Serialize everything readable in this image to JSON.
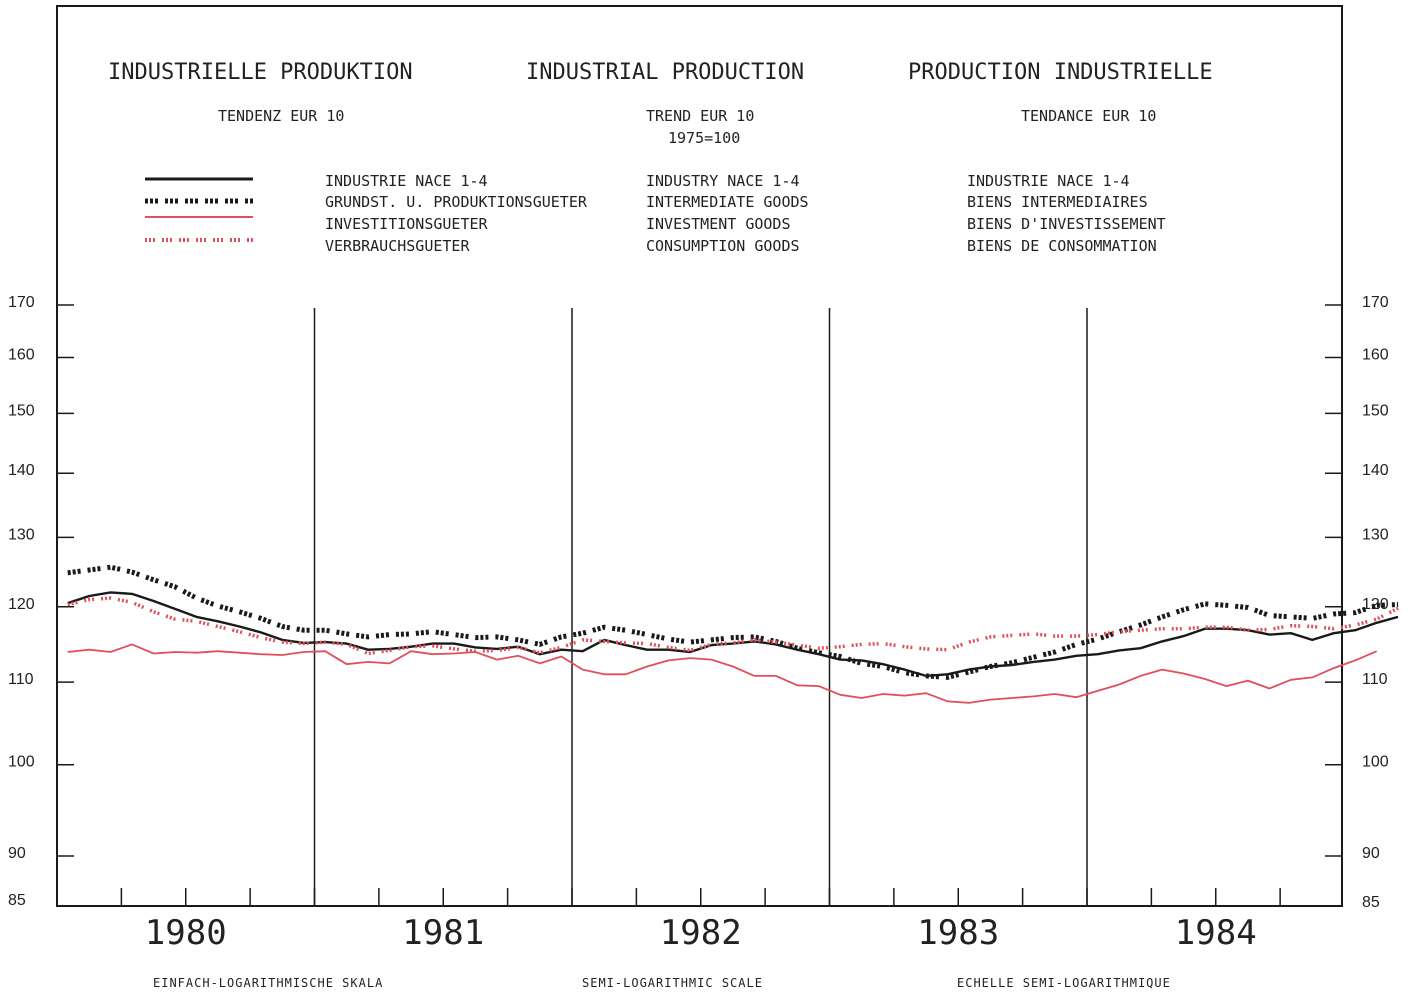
{
  "titles": {
    "de": "INDUSTRIELLE PRODUKTION",
    "en": "INDUSTRIAL PRODUCTION",
    "fr": "PRODUCTION INDUSTRIELLE"
  },
  "subtitles": {
    "de": "TENDENZ  EUR 10",
    "en": "TREND EUR 10",
    "en_base": "1975=100",
    "fr": "TENDANCE EUR 10"
  },
  "legend": [
    {
      "de": "INDUSTRIE NACE 1-4",
      "en": "INDUSTRY NACE 1-4",
      "fr": "INDUSTRIE NACE 1-4",
      "color": "#1a1a1a",
      "style": "solid"
    },
    {
      "de": "GRUNDST. U. PRODUKTIONSGUETER",
      "en": "INTERMEDIATE GOODS",
      "fr": "BIENS INTERMEDIAIRES",
      "color": "#1a1a1a",
      "style": "dotted-thick"
    },
    {
      "de": "INVESTITIONSGUETER",
      "en": "INVESTMENT GOODS",
      "fr": "BIENS D'INVESTISSEMENT",
      "color": "#e0505a",
      "style": "solid"
    },
    {
      "de": "VERBRAUCHSGUETER",
      "en": "CONSUMPTION GOODS",
      "fr": "BIENS DE CONSOMMATION",
      "color": "#e0505a",
      "style": "dotted"
    }
  ],
  "footer": {
    "de": "EINFACH-LOGARITHMISCHE SKALA",
    "en": "SEMI-LOGARITHMIC SCALE",
    "fr": "ECHELLE SEMI-LOGARITHMIQUE"
  },
  "chart_data": {
    "type": "line",
    "title": "INDUSTRIAL PRODUCTION",
    "scale": "log",
    "ylim": [
      85,
      170
    ],
    "yticks": [
      170,
      160,
      150,
      140,
      130,
      120,
      110,
      100,
      90,
      85
    ],
    "ytick_labels": [
      "170",
      "160",
      "150",
      "140",
      "130",
      "120",
      "110",
      "100",
      "90",
      "85"
    ],
    "years": [
      "1980",
      "1981",
      "1982",
      "1983",
      "1984"
    ],
    "x_unit": "month",
    "x_start": "1980-01",
    "series": [
      {
        "name": "INDUSTRY NACE 1-4",
        "color": "#1a1a1a",
        "style": "solid",
        "values": [
          120.5,
          121.5,
          122.0,
          121.8,
          120.8,
          119.7,
          118.6,
          118.0,
          117.3,
          116.5,
          115.5,
          115.1,
          115.2,
          115.0,
          114.2,
          114.3,
          114.6,
          115.0,
          115.0,
          114.5,
          114.3,
          114.6,
          113.6,
          114.2,
          114.0,
          115.5,
          114.8,
          114.2,
          114.2,
          113.9,
          114.8,
          115.0,
          115.3,
          114.9,
          114.2,
          113.6,
          112.9,
          112.8,
          112.3,
          111.6,
          110.8,
          111.0,
          111.6,
          112.0,
          112.2,
          112.6,
          112.9,
          113.4,
          113.6,
          114.1,
          114.4,
          115.3,
          116.0,
          117.0,
          117.0,
          116.8,
          116.2,
          116.4,
          115.5,
          116.4,
          116.8,
          117.8,
          118.6
        ]
      },
      {
        "name": "INTERMEDIATE GOODS",
        "color": "#1a1a1a",
        "style": "dotted-thick",
        "values": [
          124.8,
          125.2,
          125.6,
          124.9,
          123.8,
          122.8,
          121.2,
          120.1,
          119.3,
          118.4,
          117.3,
          116.8,
          116.8,
          116.3,
          115.9,
          116.2,
          116.3,
          116.6,
          116.2,
          115.8,
          115.9,
          115.5,
          114.9,
          115.9,
          116.4,
          117.2,
          116.8,
          116.2,
          115.6,
          115.2,
          115.5,
          115.8,
          115.9,
          115.3,
          114.4,
          113.8,
          113.3,
          112.4,
          112.0,
          111.2,
          110.8,
          110.6,
          111.3,
          112.0,
          112.5,
          113.2,
          113.9,
          114.9,
          115.6,
          116.6,
          117.5,
          118.6,
          119.6,
          120.4,
          120.2,
          119.9,
          118.8,
          118.6,
          118.4,
          119.0,
          119.2,
          120.2,
          120.3
        ]
      },
      {
        "name": "INVESTMENT GOODS",
        "color": "#e0505a",
        "style": "solid",
        "values": [
          113.9,
          114.2,
          113.9,
          114.9,
          113.7,
          113.9,
          113.8,
          114.0,
          113.8,
          113.6,
          113.5,
          113.9,
          114.0,
          112.3,
          112.6,
          112.4,
          114.0,
          113.6,
          113.7,
          113.9,
          112.9,
          113.4,
          112.4,
          113.3,
          111.6,
          111.0,
          111.0,
          112.0,
          112.8,
          113.1,
          112.9,
          112.0,
          110.8,
          110.8,
          109.6,
          109.5,
          108.4,
          108.0,
          108.5,
          108.3,
          108.6,
          107.6,
          107.4,
          107.8,
          108.0,
          108.2,
          108.5,
          108.1,
          108.9,
          109.7,
          110.8,
          111.6,
          111.1,
          110.4,
          109.5,
          110.2,
          109.2,
          110.3,
          110.6,
          111.8,
          112.8,
          114.0
        ]
      },
      {
        "name": "CONSUMPTION GOODS",
        "color": "#e0505a",
        "style": "dotted",
        "values": [
          120.3,
          121.0,
          121.2,
          120.6,
          119.3,
          118.3,
          118.0,
          117.3,
          116.6,
          115.8,
          115.2,
          115.0,
          115.2,
          114.9,
          113.7,
          114.1,
          114.6,
          114.7,
          114.3,
          114.0,
          114.1,
          114.5,
          113.8,
          114.5,
          115.5,
          115.3,
          115.1,
          115.0,
          114.5,
          114.1,
          114.9,
          115.1,
          115.5,
          115.2,
          114.8,
          114.4,
          114.6,
          114.9,
          115.0,
          114.6,
          114.3,
          114.2,
          115.2,
          115.9,
          116.1,
          116.3,
          116.0,
          116.0,
          116.2,
          116.6,
          116.8,
          117.0,
          117.0,
          117.2,
          117.2,
          116.8,
          116.9,
          117.4,
          117.3,
          117.0,
          117.5,
          118.3,
          119.8
        ]
      }
    ]
  }
}
